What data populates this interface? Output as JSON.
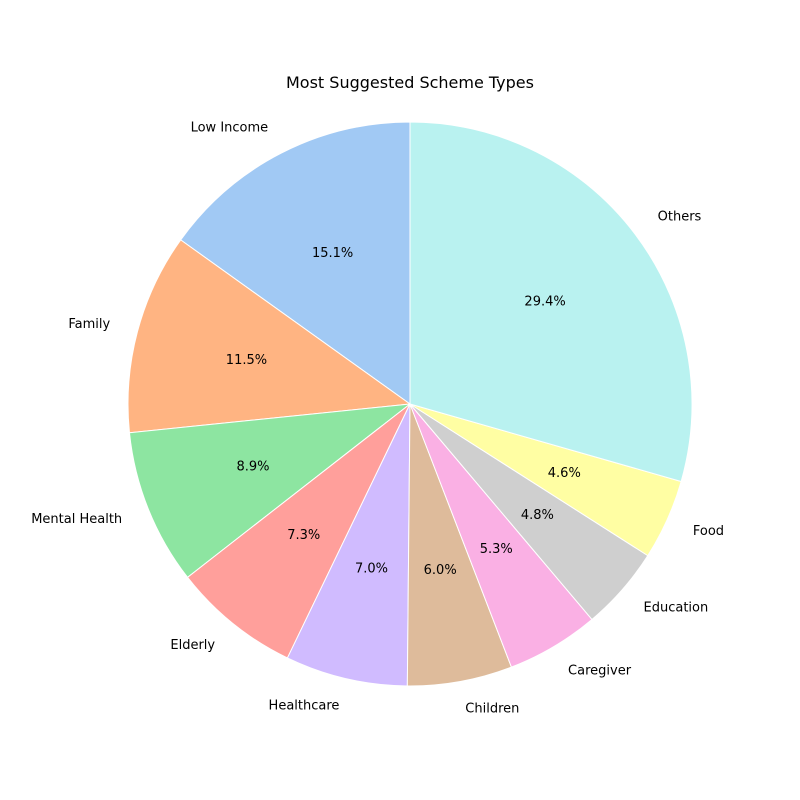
{
  "chart_data": {
    "type": "pie",
    "title": "Most Suggested Scheme Types",
    "start_angle_deg": 90,
    "direction": "counterclockwise",
    "slices": [
      {
        "label": "Low Income",
        "value": 15.1,
        "pct_text": "15.1%",
        "color": "#a1c9f4"
      },
      {
        "label": "Family",
        "value": 11.5,
        "pct_text": "11.5%",
        "color": "#ffb482"
      },
      {
        "label": "Mental Health",
        "value": 8.9,
        "pct_text": "8.9%",
        "color": "#8de5a1"
      },
      {
        "label": "Elderly",
        "value": 7.3,
        "pct_text": "7.3%",
        "color": "#ff9f9b"
      },
      {
        "label": "Healthcare",
        "value": 7.0,
        "pct_text": "7.0%",
        "color": "#d0bbff"
      },
      {
        "label": "Children",
        "value": 6.0,
        "pct_text": "6.0%",
        "color": "#debb9b"
      },
      {
        "label": "Caregiver",
        "value": 5.3,
        "pct_text": "5.3%",
        "color": "#fab0e4"
      },
      {
        "label": "Education",
        "value": 4.8,
        "pct_text": "4.8%",
        "color": "#cfcfcf"
      },
      {
        "label": "Food",
        "value": 4.6,
        "pct_text": "4.6%",
        "color": "#fffea3"
      },
      {
        "label": "Others",
        "value": 29.4,
        "pct_text": "29.4%",
        "color": "#b9f2f0"
      }
    ]
  }
}
